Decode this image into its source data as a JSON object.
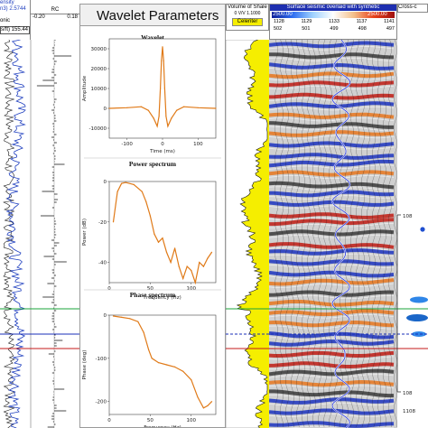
{
  "window_title": "Wavelet Parameters",
  "left_headers": {
    "density_label": "ensity",
    "density_value": "n3) 2.5744",
    "sonic_label": "onic",
    "sonic_value": "s/ft) 155.44",
    "rc_label": "RC",
    "rc_min": "-0.20",
    "rc_max": "0.18"
  },
  "right_headers": {
    "vshale_label": "Volume of Shale",
    "vshale_values": "0 V/V     1.1000",
    "seismic_label": "Surface seismic overlaid with synthetic",
    "celeriter_label": "Celeriter",
    "scale_min": "2500.00",
    "scale_max": "2500.00",
    "cross_label": "Cross-c",
    "trace_top": [
      "1128",
      "1129",
      "1133",
      "1137",
      "1141"
    ],
    "trace_bottom": [
      "502",
      "501",
      "499",
      "498",
      "497"
    ]
  },
  "time_markers": [
    "108",
    "108"
  ],
  "bottom_marker": "1108",
  "colors": {
    "wavelet_line": "#e07a18",
    "sonic_line": "#1f3fbf",
    "vshale_fill": "#f5ee00",
    "horizon_green": "#1aa33a",
    "horizon_blue": "#1a2fb8",
    "horizon_red": "#c41a1a"
  },
  "chart_data": [
    {
      "type": "line",
      "title": "Wavelet",
      "xlabel": "Time (ms)",
      "ylabel": "Amplitude",
      "xlim": [
        -150,
        150
      ],
      "ylim": [
        -15000,
        35000
      ],
      "xticks": [
        -100,
        0,
        100
      ],
      "yticks": [
        -10000,
        0,
        10000,
        20000,
        30000
      ],
      "x": [
        -150,
        -100,
        -60,
        -40,
        -25,
        -15,
        -10,
        -6,
        -3,
        0,
        3,
        6,
        10,
        15,
        25,
        40,
        60,
        100,
        150
      ],
      "y": [
        0,
        300,
        800,
        -1000,
        -5000,
        -9000,
        -4000,
        10000,
        24000,
        31000,
        24000,
        10000,
        -4000,
        -9000,
        -5000,
        -1000,
        800,
        300,
        0
      ]
    },
    {
      "type": "line",
      "title": "Power spectrum",
      "xlabel": "Frequency (Hz)",
      "ylabel": "Power (dB)",
      "xlim": [
        0,
        130
      ],
      "ylim": [
        -50,
        0
      ],
      "xticks": [
        0,
        50,
        100
      ],
      "yticks": [
        0,
        -20,
        -40
      ],
      "x": [
        5,
        10,
        15,
        20,
        30,
        40,
        45,
        50,
        55,
        60,
        65,
        70,
        75,
        80,
        85,
        90,
        95,
        100,
        105,
        110,
        115,
        120,
        125
      ],
      "y": [
        -20,
        -5,
        -1,
        -0.5,
        -1.5,
        -5,
        -10,
        -17,
        -26,
        -30,
        -28,
        -35,
        -40,
        -33,
        -42,
        -48,
        -42,
        -44,
        -50,
        -40,
        -42,
        -38,
        -35
      ]
    },
    {
      "type": "line",
      "title": "Phase spectrum",
      "xlabel": "Frequency (Hz)",
      "ylabel": "Phase (deg)",
      "xlim": [
        0,
        130
      ],
      "ylim": [
        -230,
        0
      ],
      "xticks": [
        0,
        50,
        100
      ],
      "yticks": [
        0,
        -100,
        -200
      ],
      "x": [
        5,
        15,
        25,
        35,
        42,
        48,
        52,
        60,
        70,
        80,
        90,
        100,
        108,
        115,
        120,
        125
      ],
      "y": [
        -2,
        -5,
        -8,
        -15,
        -40,
        -80,
        -100,
        -110,
        -115,
        -120,
        -130,
        -150,
        -190,
        -215,
        -210,
        -200
      ]
    }
  ]
}
